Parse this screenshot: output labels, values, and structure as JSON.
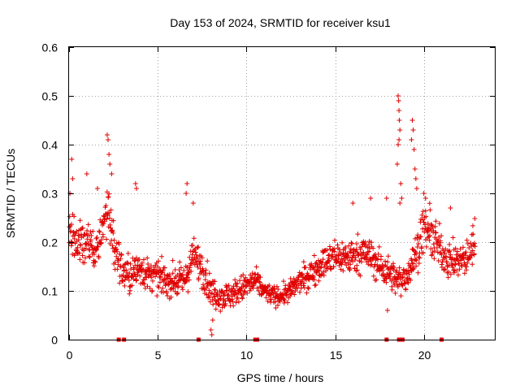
{
  "chart_data": {
    "type": "scatter",
    "title": "Day 153 of 2024, SRMTID for receiver ksu1",
    "xlabel": "GPS time / hours",
    "ylabel": "SRMTID / TECUs",
    "xlim": [
      0,
      24
    ],
    "ylim": [
      0,
      0.6
    ],
    "x_ticks": [
      0,
      5,
      10,
      15,
      20
    ],
    "x_tick_labels": [
      "0",
      "5",
      "10",
      "15",
      "20"
    ],
    "y_ticks": [
      0,
      0.1,
      0.2,
      0.3,
      0.4,
      0.5,
      0.6
    ],
    "y_tick_labels": [
      "0",
      "0.1",
      "0.2",
      "0.3",
      "0.4",
      "0.5",
      "0.6"
    ],
    "grid": true,
    "marker": "plus",
    "color": "#e00000",
    "series_name": "ksu1",
    "envelope": {
      "x": [
        0,
        0.5,
        1,
        1.5,
        2,
        2.2,
        2.5,
        3,
        3.5,
        4,
        4.5,
        5,
        5.5,
        6,
        6.5,
        7,
        7.5,
        8,
        8.5,
        9,
        9.5,
        10,
        10.5,
        11,
        11.5,
        12,
        12.5,
        13,
        13.5,
        14,
        14.5,
        15,
        15.5,
        16,
        16.5,
        17,
        17.5,
        18,
        18.5,
        19,
        19.5,
        20,
        20.5,
        21,
        21.5,
        22,
        22.5,
        22.9
      ],
      "center": [
        0.22,
        0.2,
        0.2,
        0.18,
        0.24,
        0.27,
        0.2,
        0.14,
        0.13,
        0.15,
        0.13,
        0.13,
        0.12,
        0.12,
        0.12,
        0.17,
        0.15,
        0.1,
        0.09,
        0.09,
        0.1,
        0.11,
        0.12,
        0.1,
        0.09,
        0.09,
        0.1,
        0.12,
        0.13,
        0.15,
        0.16,
        0.17,
        0.17,
        0.17,
        0.18,
        0.17,
        0.15,
        0.14,
        0.12,
        0.13,
        0.17,
        0.23,
        0.21,
        0.18,
        0.16,
        0.16,
        0.17,
        0.21
      ],
      "spread": [
        0.06,
        0.06,
        0.06,
        0.05,
        0.07,
        0.08,
        0.06,
        0.05,
        0.05,
        0.05,
        0.04,
        0.04,
        0.04,
        0.04,
        0.04,
        0.05,
        0.05,
        0.04,
        0.035,
        0.035,
        0.035,
        0.035,
        0.035,
        0.025,
        0.025,
        0.025,
        0.03,
        0.03,
        0.035,
        0.04,
        0.04,
        0.045,
        0.045,
        0.045,
        0.05,
        0.045,
        0.045,
        0.04,
        0.04,
        0.04,
        0.05,
        0.06,
        0.06,
        0.05,
        0.045,
        0.045,
        0.045,
        0.05
      ],
      "density_per_hour": 60
    },
    "spikes": [
      {
        "x": 0.15,
        "y": 0.37
      },
      {
        "x": 0.2,
        "y": 0.33
      },
      {
        "x": 0.05,
        "y": 0.3
      },
      {
        "x": 1.0,
        "y": 0.34
      },
      {
        "x": 1.6,
        "y": 0.31
      },
      {
        "x": 2.15,
        "y": 0.42
      },
      {
        "x": 2.2,
        "y": 0.41
      },
      {
        "x": 2.25,
        "y": 0.38
      },
      {
        "x": 2.3,
        "y": 0.36
      },
      {
        "x": 2.4,
        "y": 0.34
      },
      {
        "x": 3.75,
        "y": 0.32
      },
      {
        "x": 3.8,
        "y": 0.31
      },
      {
        "x": 6.6,
        "y": 0.3
      },
      {
        "x": 6.65,
        "y": 0.32
      },
      {
        "x": 7.0,
        "y": 0.28
      },
      {
        "x": 8.0,
        "y": 0.02
      },
      {
        "x": 8.05,
        "y": 0.01
      },
      {
        "x": 8.1,
        "y": 0.04
      },
      {
        "x": 16.0,
        "y": 0.28
      },
      {
        "x": 17.0,
        "y": 0.29
      },
      {
        "x": 17.95,
        "y": 0.06
      },
      {
        "x": 17.9,
        "y": 0.29
      },
      {
        "x": 18.55,
        "y": 0.5
      },
      {
        "x": 18.58,
        "y": 0.49
      },
      {
        "x": 18.6,
        "y": 0.47
      },
      {
        "x": 18.62,
        "y": 0.45
      },
      {
        "x": 18.65,
        "y": 0.43
      },
      {
        "x": 18.6,
        "y": 0.41
      },
      {
        "x": 18.55,
        "y": 0.4
      },
      {
        "x": 18.5,
        "y": 0.36
      },
      {
        "x": 18.7,
        "y": 0.32
      },
      {
        "x": 18.75,
        "y": 0.29
      },
      {
        "x": 18.65,
        "y": 0.28
      },
      {
        "x": 19.35,
        "y": 0.45
      },
      {
        "x": 19.4,
        "y": 0.43
      },
      {
        "x": 19.3,
        "y": 0.41
      },
      {
        "x": 19.45,
        "y": 0.39
      },
      {
        "x": 19.5,
        "y": 0.35
      },
      {
        "x": 19.55,
        "y": 0.33
      },
      {
        "x": 19.6,
        "y": 0.31
      },
      {
        "x": 20.0,
        "y": 0.3
      },
      {
        "x": 20.1,
        "y": 0.29
      },
      {
        "x": 21.5,
        "y": 0.27
      }
    ],
    "gap_markers_x": [
      2.8,
      3.1,
      7.3,
      10.5,
      10.6,
      17.9,
      18.6,
      18.8,
      21.0
    ]
  }
}
